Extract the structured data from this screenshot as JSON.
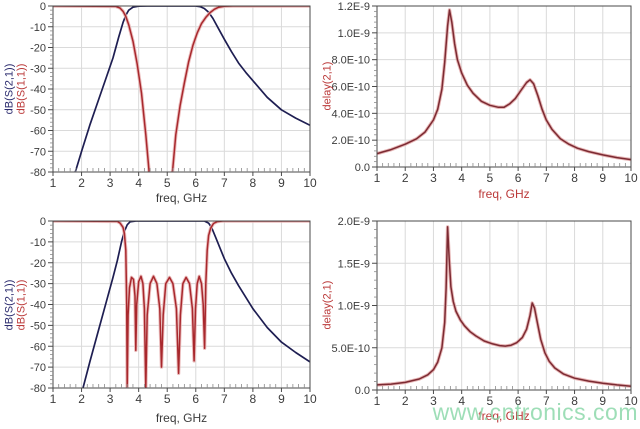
{
  "watermark": {
    "text": "www.cntronics.com",
    "color": "#86d6a6"
  },
  "colors": {
    "s21_trace": "#1e1e52",
    "s11_trace": "#a8282d",
    "s11_halo": "#e8b2b2",
    "delay_trace": "#7c2a32",
    "delay_halo": "#e2a8a8",
    "grid": "#dadada",
    "frame": "#4a4a4a",
    "tick_text": "#3c3c3c"
  },
  "chart_data": [
    {
      "type": "line",
      "position": "top-left",
      "xlabel": "freq, GHz",
      "xlabel_color": "#3c3c3c",
      "x_range": [
        1,
        10
      ],
      "xticks": [
        1,
        2,
        3,
        4,
        5,
        6,
        7,
        8,
        9,
        10
      ],
      "ylim": [
        -80,
        0
      ],
      "grid": true,
      "yticks": [
        {
          "v": 0,
          "t": "0"
        },
        {
          "v": -10,
          "t": "-10"
        },
        {
          "v": -20,
          "t": "-20"
        },
        {
          "v": -30,
          "t": "-30"
        },
        {
          "v": -40,
          "t": "-40"
        },
        {
          "v": -50,
          "t": "-50"
        },
        {
          "v": -60,
          "t": "-60"
        },
        {
          "v": -70,
          "t": "-70"
        },
        {
          "v": -80,
          "t": "-80"
        }
      ],
      "ylabels": [
        {
          "text": "dB(S(2,1))",
          "color": "#2b2b6e"
        },
        {
          "text": "dB(S(1,1))",
          "color": "#bb3a3a"
        }
      ],
      "series": [
        {
          "name": "dB(S(2,1))",
          "color": "#1e1e52",
          "width": 1.7,
          "halo": null,
          "points": [
            [
              1.78,
              -80
            ],
            [
              2.0,
              -70
            ],
            [
              2.3,
              -57
            ],
            [
              2.6,
              -45
            ],
            [
              2.9,
              -33
            ],
            [
              3.1,
              -25
            ],
            [
              3.3,
              -15
            ],
            [
              3.45,
              -8
            ],
            [
              3.55,
              -4.5
            ],
            [
              3.65,
              -2
            ],
            [
              3.8,
              -0.6
            ],
            [
              4.0,
              -0.1
            ],
            [
              4.3,
              0
            ],
            [
              6.0,
              0
            ],
            [
              6.15,
              -0.3
            ],
            [
              6.3,
              -1.2
            ],
            [
              6.45,
              -3
            ],
            [
              6.6,
              -6
            ],
            [
              6.8,
              -11
            ],
            [
              7.0,
              -16
            ],
            [
              7.25,
              -22
            ],
            [
              7.5,
              -27.5
            ],
            [
              7.75,
              -32
            ],
            [
              8.0,
              -36
            ],
            [
              8.5,
              -44
            ],
            [
              9.0,
              -50
            ],
            [
              9.5,
              -54
            ],
            [
              10,
              -57.5
            ]
          ]
        },
        {
          "name": "dB(S(1,1))",
          "color": "#a8282d",
          "width": 1.5,
          "halo": "#e8b2b2",
          "points": [
            [
              1,
              0
            ],
            [
              3.2,
              -0.2
            ],
            [
              3.35,
              -1
            ],
            [
              3.45,
              -2.5
            ],
            [
              3.55,
              -5
            ],
            [
              3.65,
              -9
            ],
            [
              3.8,
              -17
            ],
            [
              3.95,
              -28
            ],
            [
              4.1,
              -42
            ],
            [
              4.25,
              -62
            ],
            [
              4.38,
              -82
            ],
            [
              4.5,
              -95
            ],
            [
              5.05,
              -95
            ],
            [
              5.17,
              -82
            ],
            [
              5.3,
              -62
            ],
            [
              5.45,
              -48
            ],
            [
              5.6,
              -37
            ],
            [
              5.75,
              -27
            ],
            [
              5.9,
              -19
            ],
            [
              6.05,
              -13
            ],
            [
              6.2,
              -8.5
            ],
            [
              6.35,
              -5.5
            ],
            [
              6.5,
              -3.2
            ],
            [
              6.65,
              -1.6
            ],
            [
              6.8,
              -0.6
            ],
            [
              7.0,
              -0.15
            ],
            [
              7.3,
              0
            ],
            [
              10,
              0
            ]
          ]
        }
      ]
    },
    {
      "type": "line",
      "position": "top-right",
      "xlabel": "freq, GHz",
      "xlabel_color": "#bb3a3a",
      "x_range": [
        1,
        10
      ],
      "xticks": [
        1,
        2,
        3,
        4,
        5,
        6,
        7,
        8,
        9,
        10
      ],
      "ylim": [
        0,
        1.2e-09
      ],
      "grid": true,
      "yticks": [
        {
          "v": 1.2e-09,
          "t": "1.2E-9"
        },
        {
          "v": 1e-09,
          "t": "1.0E-9"
        },
        {
          "v": 8e-10,
          "t": "8.0E-10"
        },
        {
          "v": 6e-10,
          "t": "6.0E-10"
        },
        {
          "v": 4e-10,
          "t": "4.0E-10"
        },
        {
          "v": 2e-10,
          "t": "2.0E-10"
        },
        {
          "v": 0,
          "t": "0.0"
        }
      ],
      "ylabels": [
        {
          "text": "delay(2,1)",
          "color": "#bb3a3a"
        }
      ],
      "series": [
        {
          "name": "delay(2,1)",
          "color": "#7c2a32",
          "width": 1.5,
          "halo": "#e2a8a8",
          "points": [
            [
              1,
              1e-10
            ],
            [
              1.5,
              1.3e-10
            ],
            [
              2,
              1.7e-10
            ],
            [
              2.4,
              2.1e-10
            ],
            [
              2.7,
              2.6e-10
            ],
            [
              3.0,
              3.5e-10
            ],
            [
              3.15,
              4.3e-10
            ],
            [
              3.3,
              5.8e-10
            ],
            [
              3.4,
              7.8e-10
            ],
            [
              3.5,
              1.05e-09
            ],
            [
              3.57,
              1.17e-09
            ],
            [
              3.65,
              1.08e-09
            ],
            [
              3.75,
              9.2e-10
            ],
            [
              3.85,
              8e-10
            ],
            [
              4.0,
              7e-10
            ],
            [
              4.2,
              6.1e-10
            ],
            [
              4.4,
              5.5e-10
            ],
            [
              4.7,
              4.9e-10
            ],
            [
              5.0,
              4.6e-10
            ],
            [
              5.3,
              4.45e-10
            ],
            [
              5.5,
              4.45e-10
            ],
            [
              5.7,
              4.7e-10
            ],
            [
              5.9,
              5.1e-10
            ],
            [
              6.1,
              5.7e-10
            ],
            [
              6.3,
              6.3e-10
            ],
            [
              6.42,
              6.5e-10
            ],
            [
              6.55,
              6.2e-10
            ],
            [
              6.7,
              5.3e-10
            ],
            [
              6.85,
              4.3e-10
            ],
            [
              7.0,
              3.5e-10
            ],
            [
              7.2,
              2.8e-10
            ],
            [
              7.5,
              2.1e-10
            ],
            [
              7.8,
              1.7e-10
            ],
            [
              8.1,
              1.4e-10
            ],
            [
              8.5,
              1.15e-10
            ],
            [
              9.0,
              9e-11
            ],
            [
              9.5,
              7e-11
            ],
            [
              10,
              5.5e-11
            ]
          ]
        }
      ]
    },
    {
      "type": "line",
      "position": "bottom-left",
      "xlabel": "freq, GHz",
      "xlabel_color": "#3c3c3c",
      "x_range": [
        1,
        10
      ],
      "xticks": [
        1,
        2,
        3,
        4,
        5,
        6,
        7,
        8,
        9,
        10
      ],
      "ylim": [
        -80,
        0
      ],
      "grid": true,
      "yticks": [
        {
          "v": 0,
          "t": "0"
        },
        {
          "v": -10,
          "t": "-10"
        },
        {
          "v": -20,
          "t": "-20"
        },
        {
          "v": -30,
          "t": "-30"
        },
        {
          "v": -40,
          "t": "-40"
        },
        {
          "v": -50,
          "t": "-50"
        },
        {
          "v": -60,
          "t": "-60"
        },
        {
          "v": -70,
          "t": "-70"
        },
        {
          "v": -80,
          "t": "-80"
        }
      ],
      "ylabels": [
        {
          "text": "dB(S(2,1))",
          "color": "#2b2b6e"
        },
        {
          "text": "dB(S(1,1))",
          "color": "#bb3a3a"
        }
      ],
      "series": [
        {
          "name": "dB(S(2,1))",
          "color": "#1e1e52",
          "width": 1.7,
          "halo": null,
          "points": [
            [
              2.05,
              -80
            ],
            [
              2.3,
              -67
            ],
            [
              2.6,
              -52
            ],
            [
              2.9,
              -37
            ],
            [
              3.1,
              -27
            ],
            [
              3.25,
              -19
            ],
            [
              3.4,
              -10
            ],
            [
              3.5,
              -5
            ],
            [
              3.6,
              -1.8
            ],
            [
              3.7,
              -0.4
            ],
            [
              3.9,
              0
            ],
            [
              6.3,
              0
            ],
            [
              6.45,
              -1
            ],
            [
              6.55,
              -3
            ],
            [
              6.7,
              -8
            ],
            [
              6.85,
              -13
            ],
            [
              7.0,
              -18
            ],
            [
              7.25,
              -25
            ],
            [
              7.5,
              -31
            ],
            [
              8.0,
              -42
            ],
            [
              8.5,
              -51
            ],
            [
              9.0,
              -58
            ],
            [
              9.5,
              -63
            ],
            [
              10,
              -67.5
            ]
          ]
        },
        {
          "name": "dB(S(1,1))",
          "color": "#a8282d",
          "width": 1.5,
          "halo": "#e8b2b2",
          "points": [
            [
              1,
              0
            ],
            [
              3.25,
              -0.2
            ],
            [
              3.35,
              -1
            ],
            [
              3.45,
              -3
            ],
            [
              3.5,
              -6
            ],
            [
              3.55,
              -14
            ],
            [
              3.58,
              -40
            ],
            [
              3.6,
              -80
            ],
            [
              3.63,
              -45
            ],
            [
              3.68,
              -32
            ],
            [
              3.75,
              -27
            ],
            [
              3.82,
              -28
            ],
            [
              3.87,
              -36
            ],
            [
              3.9,
              -62
            ],
            [
              3.93,
              -40
            ],
            [
              4.0,
              -29
            ],
            [
              4.08,
              -26.5
            ],
            [
              4.15,
              -30
            ],
            [
              4.2,
              -42
            ],
            [
              4.25,
              -80
            ],
            [
              4.3,
              -45
            ],
            [
              4.4,
              -30
            ],
            [
              4.52,
              -26.5
            ],
            [
              4.64,
              -30
            ],
            [
              4.74,
              -42
            ],
            [
              4.8,
              -70
            ],
            [
              4.86,
              -45
            ],
            [
              4.95,
              -30
            ],
            [
              5.08,
              -27
            ],
            [
              5.2,
              -30
            ],
            [
              5.32,
              -42
            ],
            [
              5.4,
              -73
            ],
            [
              5.46,
              -45
            ],
            [
              5.55,
              -30
            ],
            [
              5.66,
              -27
            ],
            [
              5.78,
              -30
            ],
            [
              5.88,
              -42
            ],
            [
              5.94,
              -67
            ],
            [
              5.99,
              -42
            ],
            [
              6.05,
              -30
            ],
            [
              6.12,
              -26.5
            ],
            [
              6.2,
              -30
            ],
            [
              6.26,
              -40
            ],
            [
              6.31,
              -61
            ],
            [
              6.35,
              -30
            ],
            [
              6.4,
              -14
            ],
            [
              6.45,
              -7
            ],
            [
              6.52,
              -3.5
            ],
            [
              6.62,
              -1.2
            ],
            [
              6.75,
              -0.3
            ],
            [
              6.95,
              0
            ],
            [
              10,
              0
            ]
          ]
        }
      ]
    },
    {
      "type": "line",
      "position": "bottom-right",
      "xlabel": "freq, GHz",
      "xlabel_color": "#bb3a3a",
      "x_range": [
        1,
        10
      ],
      "xticks": [
        1,
        2,
        3,
        4,
        5,
        6,
        7,
        8,
        9,
        10
      ],
      "ylim": [
        0,
        2e-09
      ],
      "grid": true,
      "yticks": [
        {
          "v": 2e-09,
          "t": "2.0E-9"
        },
        {
          "v": 1.5e-09,
          "t": "1.5E-9"
        },
        {
          "v": 1e-09,
          "t": "1.0E-9"
        },
        {
          "v": 5e-10,
          "t": "5.0E-10"
        },
        {
          "v": 0,
          "t": "0.0"
        }
      ],
      "ylabels": [
        {
          "text": "delay(2,1)",
          "color": "#bb3a3a"
        }
      ],
      "series": [
        {
          "name": "delay(2,1)",
          "color": "#7c2a32",
          "width": 1.5,
          "halo": "#e2a8a8",
          "points": [
            [
              1,
              6e-11
            ],
            [
              1.5,
              7e-11
            ],
            [
              2,
              9e-11
            ],
            [
              2.5,
              1.3e-10
            ],
            [
              2.8,
              1.8e-10
            ],
            [
              3.0,
              2.4e-10
            ],
            [
              3.15,
              3.3e-10
            ],
            [
              3.3,
              5e-10
            ],
            [
              3.4,
              8e-10
            ],
            [
              3.45,
              1.2e-09
            ],
            [
              3.5,
              1.93e-09
            ],
            [
              3.56,
              1.55e-09
            ],
            [
              3.62,
              1.22e-09
            ],
            [
              3.7,
              1.05e-09
            ],
            [
              3.8,
              9.3e-10
            ],
            [
              3.95,
              8.3e-10
            ],
            [
              4.1,
              7.6e-10
            ],
            [
              4.3,
              6.9e-10
            ],
            [
              4.5,
              6.4e-10
            ],
            [
              4.8,
              5.8e-10
            ],
            [
              5.1,
              5.45e-10
            ],
            [
              5.35,
              5.25e-10
            ],
            [
              5.55,
              5.2e-10
            ],
            [
              5.75,
              5.3e-10
            ],
            [
              5.95,
              5.6e-10
            ],
            [
              6.15,
              6.2e-10
            ],
            [
              6.3,
              7.2e-10
            ],
            [
              6.42,
              8.8e-10
            ],
            [
              6.5,
              1.03e-09
            ],
            [
              6.58,
              9.7e-10
            ],
            [
              6.68,
              8e-10
            ],
            [
              6.8,
              6e-10
            ],
            [
              6.95,
              4.4e-10
            ],
            [
              7.1,
              3.4e-10
            ],
            [
              7.3,
              2.6e-10
            ],
            [
              7.6,
              1.9e-10
            ],
            [
              8.0,
              1.4e-10
            ],
            [
              8.5,
              1.05e-10
            ],
            [
              9.0,
              8e-11
            ],
            [
              9.5,
              6e-11
            ],
            [
              10,
              4.5e-11
            ]
          ]
        }
      ]
    }
  ]
}
